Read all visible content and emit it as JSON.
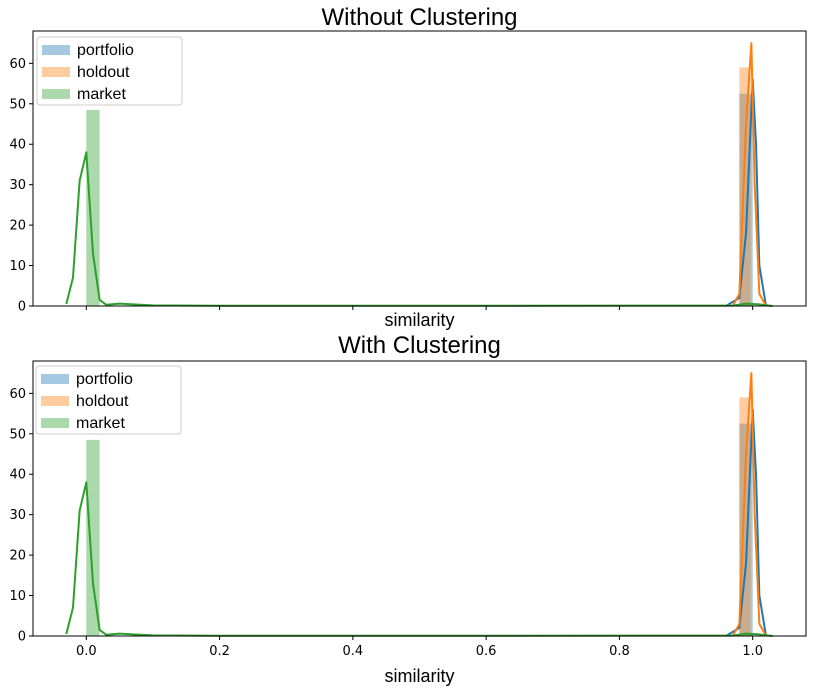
{
  "chart_data": [
    {
      "type": "histogram",
      "title": "Without Clustering",
      "xlabel": "similarity",
      "ylabel": "",
      "xlim": [
        -0.08,
        1.08
      ],
      "ylim": [
        0,
        68
      ],
      "yticks": [
        0,
        10,
        20,
        30,
        40,
        50,
        60
      ],
      "xticks": [
        0.0,
        0.2,
        0.4,
        0.6,
        0.8,
        1.0
      ],
      "xtick_labels_visible": false,
      "legend_position": "upper left",
      "series": [
        {
          "name": "portfolio",
          "color": "#1f77b4",
          "bins": [
            {
              "x0": 0.98,
              "x1": 1.0,
              "height": 52.5
            }
          ],
          "kde": [
            [
              0.96,
              0
            ],
            [
              0.98,
              2
            ],
            [
              0.99,
              18
            ],
            [
              1.0,
              56
            ],
            [
              1.005,
              40
            ],
            [
              1.01,
              10
            ],
            [
              1.02,
              0
            ]
          ]
        },
        {
          "name": "holdout",
          "color": "#ff7f0e",
          "bins": [
            {
              "x0": 0.98,
              "x1": 0.997,
              "height": 59
            }
          ],
          "kde": [
            [
              0.97,
              0
            ],
            [
              0.98,
              3
            ],
            [
              0.99,
              45
            ],
            [
              0.998,
              65
            ],
            [
              1.003,
              30
            ],
            [
              1.01,
              3
            ],
            [
              1.02,
              0
            ]
          ]
        },
        {
          "name": "market",
          "color": "#2ca02c",
          "bins": [
            {
              "x0": 0.0,
              "x1": 0.02,
              "height": 48.5
            },
            {
              "x0": 0.98,
              "x1": 1.0,
              "height": 0.5
            }
          ],
          "kde": [
            [
              -0.03,
              0.5
            ],
            [
              -0.02,
              7
            ],
            [
              -0.01,
              31
            ],
            [
              0.0,
              38
            ],
            [
              0.01,
              13
            ],
            [
              0.02,
              1.5
            ],
            [
              0.03,
              0.3
            ],
            [
              0.05,
              0.6
            ],
            [
              0.07,
              0.4
            ],
            [
              0.1,
              0.15
            ],
            [
              0.2,
              0.05
            ],
            [
              0.6,
              0.05
            ],
            [
              0.97,
              0.1
            ],
            [
              0.99,
              0.6
            ],
            [
              1.01,
              0.4
            ],
            [
              1.03,
              0.0
            ]
          ]
        }
      ]
    },
    {
      "type": "histogram",
      "title": "With Clustering",
      "xlabel": "similarity",
      "ylabel": "",
      "xlim": [
        -0.08,
        1.08
      ],
      "ylim": [
        0,
        68
      ],
      "yticks": [
        0,
        10,
        20,
        30,
        40,
        50,
        60
      ],
      "xticks": [
        0.0,
        0.2,
        0.4,
        0.6,
        0.8,
        1.0
      ],
      "xtick_labels_visible": true,
      "legend_position": "upper left",
      "series": [
        {
          "name": "portfolio",
          "color": "#1f77b4",
          "bins": [
            {
              "x0": 0.98,
              "x1": 1.0,
              "height": 52.5
            }
          ],
          "kde": [
            [
              0.96,
              0
            ],
            [
              0.98,
              2
            ],
            [
              0.99,
              18
            ],
            [
              1.0,
              56
            ],
            [
              1.005,
              40
            ],
            [
              1.01,
              10
            ],
            [
              1.02,
              0
            ]
          ]
        },
        {
          "name": "holdout",
          "color": "#ff7f0e",
          "bins": [
            {
              "x0": 0.98,
              "x1": 0.997,
              "height": 59
            }
          ],
          "kde": [
            [
              0.97,
              0
            ],
            [
              0.98,
              3
            ],
            [
              0.99,
              45
            ],
            [
              0.998,
              65
            ],
            [
              1.003,
              30
            ],
            [
              1.01,
              3
            ],
            [
              1.02,
              0
            ]
          ]
        },
        {
          "name": "market",
          "color": "#2ca02c",
          "bins": [
            {
              "x0": 0.0,
              "x1": 0.02,
              "height": 48.5
            },
            {
              "x0": 0.98,
              "x1": 1.0,
              "height": 0.5
            }
          ],
          "kde": [
            [
              -0.03,
              0.5
            ],
            [
              -0.02,
              7
            ],
            [
              -0.01,
              31
            ],
            [
              0.0,
              38
            ],
            [
              0.01,
              13
            ],
            [
              0.02,
              1.5
            ],
            [
              0.03,
              0.3
            ],
            [
              0.05,
              0.6
            ],
            [
              0.07,
              0.4
            ],
            [
              0.1,
              0.15
            ],
            [
              0.2,
              0.05
            ],
            [
              0.6,
              0.05
            ],
            [
              0.97,
              0.1
            ],
            [
              0.99,
              0.6
            ],
            [
              1.01,
              0.4
            ],
            [
              1.03,
              0.0
            ]
          ]
        }
      ]
    }
  ]
}
